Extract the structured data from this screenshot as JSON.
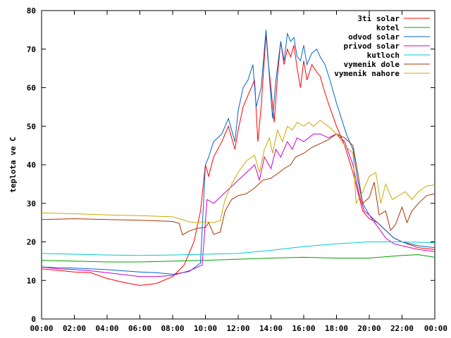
{
  "chart_data": {
    "type": "line",
    "title": "",
    "xlabel": "",
    "ylabel": "teplota ve C",
    "xlim": [
      0,
      24
    ],
    "ylim": [
      0,
      80
    ],
    "x_ticks": [
      "00:00",
      "02:00",
      "04:00",
      "06:00",
      "08:00",
      "10:00",
      "12:00",
      "14:00",
      "16:00",
      "18:00",
      "20:00",
      "22:00",
      "00:00"
    ],
    "y_ticks": [
      0,
      10,
      20,
      30,
      40,
      50,
      60,
      70,
      80
    ],
    "legend_position": "top-right",
    "grid": false,
    "series": [
      {
        "name": "3ti solar",
        "color": "#ff0000",
        "points": [
          [
            0,
            13.0
          ],
          [
            1,
            12.6
          ],
          [
            2,
            12.2
          ],
          [
            3,
            12.0
          ],
          [
            4,
            10.5
          ],
          [
            5,
            9.5
          ],
          [
            6,
            8.7
          ],
          [
            7,
            9.2
          ],
          [
            8,
            11.0
          ],
          [
            8.7,
            14
          ],
          [
            9.3,
            20
          ],
          [
            9.7,
            28
          ],
          [
            10.0,
            40
          ],
          [
            10.2,
            37
          ],
          [
            10.5,
            42
          ],
          [
            11.0,
            46
          ],
          [
            11.4,
            50
          ],
          [
            11.8,
            44
          ],
          [
            12.0,
            49
          ],
          [
            12.3,
            55
          ],
          [
            12.6,
            58
          ],
          [
            13.0,
            62
          ],
          [
            13.2,
            46
          ],
          [
            13.4,
            55
          ],
          [
            13.7,
            74
          ],
          [
            13.8,
            68
          ],
          [
            14.0,
            60
          ],
          [
            14.2,
            51
          ],
          [
            14.4,
            63
          ],
          [
            14.6,
            72
          ],
          [
            14.8,
            66
          ],
          [
            15.0,
            70
          ],
          [
            15.2,
            68
          ],
          [
            15.4,
            71
          ],
          [
            15.6,
            65
          ],
          [
            15.8,
            60
          ],
          [
            16.0,
            67
          ],
          [
            16.2,
            62
          ],
          [
            16.5,
            66
          ],
          [
            16.8,
            64
          ],
          [
            17.0,
            63
          ],
          [
            17.2,
            60
          ],
          [
            17.5,
            56
          ],
          [
            18.0,
            50
          ],
          [
            18.5,
            45
          ],
          [
            19.0,
            38
          ],
          [
            19.3,
            33
          ],
          [
            19.6,
            28
          ],
          [
            20.0,
            26
          ],
          [
            20.5,
            25
          ],
          [
            21.0,
            23
          ],
          [
            21.5,
            21
          ],
          [
            22.0,
            20
          ],
          [
            23.0,
            18.5
          ],
          [
            24.0,
            18.0
          ]
        ]
      },
      {
        "name": "kotel",
        "color": "#00a000",
        "points": [
          [
            0,
            15.2
          ],
          [
            2,
            15.0
          ],
          [
            4,
            14.8
          ],
          [
            6,
            14.8
          ],
          [
            8,
            15.0
          ],
          [
            10,
            15.2
          ],
          [
            12,
            15.5
          ],
          [
            14,
            15.8
          ],
          [
            16,
            16.0
          ],
          [
            18,
            15.8
          ],
          [
            20,
            15.8
          ],
          [
            22,
            16.5
          ],
          [
            23,
            16.7
          ],
          [
            24,
            16.0
          ]
        ]
      },
      {
        "name": "odvod solar",
        "color": "#0066cc",
        "points": [
          [
            0,
            13.5
          ],
          [
            1,
            13.3
          ],
          [
            2,
            13.2
          ],
          [
            3,
            13.0
          ],
          [
            4,
            12.8
          ],
          [
            5,
            12.5
          ],
          [
            6,
            12.2
          ],
          [
            7,
            12.0
          ],
          [
            8,
            11.6
          ],
          [
            9,
            12.3
          ],
          [
            9.7,
            14.5
          ],
          [
            10.0,
            40
          ],
          [
            10.2,
            42
          ],
          [
            10.5,
            46
          ],
          [
            11.0,
            48
          ],
          [
            11.4,
            52
          ],
          [
            11.8,
            46
          ],
          [
            12.0,
            54
          ],
          [
            12.3,
            60
          ],
          [
            12.6,
            62
          ],
          [
            12.9,
            66
          ],
          [
            13.1,
            55
          ],
          [
            13.4,
            60
          ],
          [
            13.7,
            75
          ],
          [
            13.9,
            63
          ],
          [
            14.1,
            52
          ],
          [
            14.3,
            62
          ],
          [
            14.6,
            72
          ],
          [
            14.8,
            67
          ],
          [
            15.0,
            74
          ],
          [
            15.2,
            72
          ],
          [
            15.4,
            73
          ],
          [
            15.6,
            68
          ],
          [
            15.8,
            67
          ],
          [
            16.0,
            71
          ],
          [
            16.2,
            66
          ],
          [
            16.5,
            69
          ],
          [
            16.8,
            70
          ],
          [
            17.0,
            68
          ],
          [
            17.3,
            66
          ],
          [
            17.6,
            62
          ],
          [
            18.0,
            56
          ],
          [
            18.3,
            52
          ],
          [
            18.6,
            48
          ],
          [
            19.0,
            44
          ],
          [
            19.3,
            36
          ],
          [
            19.6,
            30
          ],
          [
            20.0,
            27
          ],
          [
            20.5,
            25
          ],
          [
            21.0,
            23
          ],
          [
            21.5,
            21
          ],
          [
            22.0,
            20
          ],
          [
            23.0,
            19
          ],
          [
            24.0,
            18.5
          ]
        ]
      },
      {
        "name": "privod solar",
        "color": "#cc00cc",
        "points": [
          [
            0,
            13.5
          ],
          [
            1,
            13.0
          ],
          [
            2,
            12.8
          ],
          [
            3,
            12.5
          ],
          [
            4,
            12.0
          ],
          [
            5,
            11.5
          ],
          [
            6,
            11.0
          ],
          [
            7,
            11.0
          ],
          [
            8,
            11.3
          ],
          [
            9,
            12.5
          ],
          [
            9.8,
            14.0
          ],
          [
            10.1,
            31
          ],
          [
            10.5,
            30
          ],
          [
            11.0,
            32
          ],
          [
            11.5,
            34
          ],
          [
            12.0,
            36
          ],
          [
            12.5,
            38
          ],
          [
            13.0,
            40
          ],
          [
            13.3,
            36
          ],
          [
            13.6,
            42
          ],
          [
            14.0,
            39
          ],
          [
            14.3,
            44
          ],
          [
            14.6,
            42
          ],
          [
            15.0,
            46
          ],
          [
            15.3,
            44
          ],
          [
            15.6,
            47
          ],
          [
            16.0,
            46
          ],
          [
            16.3,
            47
          ],
          [
            16.6,
            48
          ],
          [
            17.0,
            48
          ],
          [
            17.5,
            47
          ],
          [
            18.0,
            48
          ],
          [
            18.5,
            46
          ],
          [
            19.0,
            40
          ],
          [
            19.4,
            32
          ],
          [
            19.7,
            28
          ],
          [
            20.0,
            27
          ],
          [
            20.5,
            24
          ],
          [
            21.0,
            21
          ],
          [
            21.5,
            19.5
          ],
          [
            22.0,
            19
          ],
          [
            23.0,
            18
          ],
          [
            24.0,
            17.5
          ]
        ]
      },
      {
        "name": "kutloch",
        "color": "#00cccc",
        "points": [
          [
            0,
            17.0
          ],
          [
            2,
            16.8
          ],
          [
            4,
            16.6
          ],
          [
            6,
            16.5
          ],
          [
            8,
            16.6
          ],
          [
            10,
            16.8
          ],
          [
            12,
            17.0
          ],
          [
            14,
            17.8
          ],
          [
            16,
            18.8
          ],
          [
            18,
            19.5
          ],
          [
            20,
            20.0
          ],
          [
            22,
            20.0
          ],
          [
            24,
            19.8
          ]
        ]
      },
      {
        "name": "vymenik dole",
        "color": "#aa3300",
        "points": [
          [
            0,
            25.8
          ],
          [
            2,
            26.0
          ],
          [
            4,
            25.8
          ],
          [
            6,
            25.6
          ],
          [
            8,
            25.3
          ],
          [
            8.4,
            24.8
          ],
          [
            8.6,
            21.8
          ],
          [
            9.0,
            22.8
          ],
          [
            9.5,
            23.5
          ],
          [
            10.0,
            23.7
          ],
          [
            10.2,
            25
          ],
          [
            10.5,
            22
          ],
          [
            10.9,
            22.5
          ],
          [
            11.2,
            28
          ],
          [
            11.6,
            31
          ],
          [
            12.0,
            32
          ],
          [
            12.5,
            32.5
          ],
          [
            13.0,
            34
          ],
          [
            13.5,
            36
          ],
          [
            14.0,
            36.5
          ],
          [
            14.5,
            38
          ],
          [
            14.8,
            39
          ],
          [
            15.2,
            40
          ],
          [
            15.5,
            42
          ],
          [
            16.0,
            43
          ],
          [
            16.5,
            44.5
          ],
          [
            17.0,
            45.5
          ],
          [
            17.5,
            46.5
          ],
          [
            18.0,
            48
          ],
          [
            18.5,
            47
          ],
          [
            19.0,
            45
          ],
          [
            19.3,
            38
          ],
          [
            19.6,
            30
          ],
          [
            20.0,
            31.5
          ],
          [
            20.3,
            35.5
          ],
          [
            20.6,
            27
          ],
          [
            21.0,
            28
          ],
          [
            21.3,
            23
          ],
          [
            21.6,
            24.5
          ],
          [
            22.0,
            29
          ],
          [
            22.3,
            25
          ],
          [
            22.6,
            28
          ],
          [
            23.0,
            30
          ],
          [
            23.5,
            32
          ],
          [
            24.0,
            32.5
          ]
        ]
      },
      {
        "name": "vymenik nahore",
        "color": "#ccaa00",
        "points": [
          [
            0,
            27.5
          ],
          [
            2,
            27.3
          ],
          [
            4,
            27.0
          ],
          [
            6,
            26.8
          ],
          [
            8,
            26.5
          ],
          [
            8.4,
            26
          ],
          [
            9.0,
            25.2
          ],
          [
            9.5,
            25.0
          ],
          [
            10.0,
            25.2
          ],
          [
            10.5,
            25
          ],
          [
            10.9,
            25.5
          ],
          [
            11.2,
            31
          ],
          [
            11.6,
            35
          ],
          [
            12.0,
            38
          ],
          [
            12.5,
            41
          ],
          [
            13.0,
            42.5
          ],
          [
            13.3,
            38
          ],
          [
            13.6,
            44
          ],
          [
            13.9,
            47
          ],
          [
            14.1,
            43
          ],
          [
            14.4,
            49
          ],
          [
            14.7,
            46
          ],
          [
            15.0,
            50
          ],
          [
            15.3,
            49
          ],
          [
            15.6,
            51
          ],
          [
            16.0,
            50
          ],
          [
            16.3,
            51
          ],
          [
            16.6,
            50
          ],
          [
            17.0,
            51.5
          ],
          [
            17.5,
            50
          ],
          [
            18.0,
            48
          ],
          [
            18.5,
            45
          ],
          [
            19.0,
            43
          ],
          [
            19.2,
            30
          ],
          [
            19.6,
            33
          ],
          [
            20.0,
            37
          ],
          [
            20.4,
            38
          ],
          [
            20.7,
            30
          ],
          [
            21.0,
            35
          ],
          [
            21.4,
            31
          ],
          [
            21.8,
            32
          ],
          [
            22.2,
            33
          ],
          [
            22.6,
            31
          ],
          [
            23.0,
            33
          ],
          [
            23.5,
            34.5
          ],
          [
            24.0,
            34.8
          ]
        ]
      }
    ]
  }
}
